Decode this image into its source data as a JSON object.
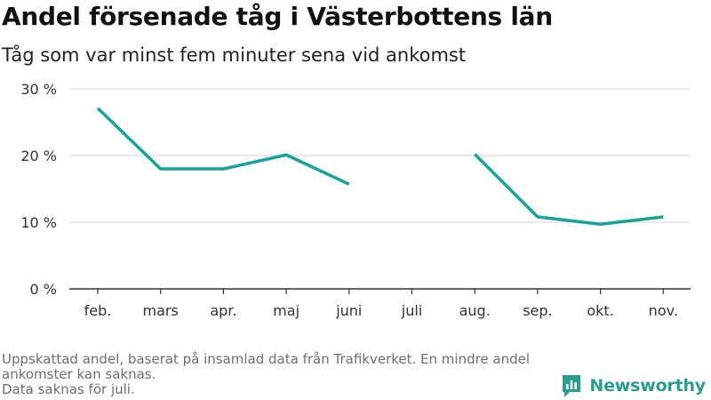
{
  "brand": {
    "name": "Newsworthy",
    "color": "#2a9d8f"
  },
  "chart_data": {
    "type": "line",
    "title": "Andel försenade tåg i Västerbottens län",
    "subtitle": "Tåg som var minst fem minuter sena vid ankomst",
    "categories": [
      "feb.",
      "mars",
      "apr.",
      "maj",
      "juni",
      "juli",
      "aug.",
      "sep.",
      "okt.",
      "nov."
    ],
    "series": [
      {
        "values": [
          27.1,
          18.0,
          18.0,
          20.1,
          15.7,
          null,
          20.2,
          10.8,
          9.7,
          10.8
        ],
        "color": "#17a398"
      }
    ],
    "ylim": [
      0,
      30
    ],
    "yticks": [
      0,
      10,
      20,
      30
    ],
    "ytick_labels": [
      "0 %",
      "10 %",
      "20 %",
      "30 %"
    ],
    "grid": true,
    "legend": "none",
    "notes": [
      "Uppskattad andel, baserat på insamlad data från Trafikverket. En mindre andel ankomster kan saknas.",
      "Data saknas för juli."
    ]
  }
}
